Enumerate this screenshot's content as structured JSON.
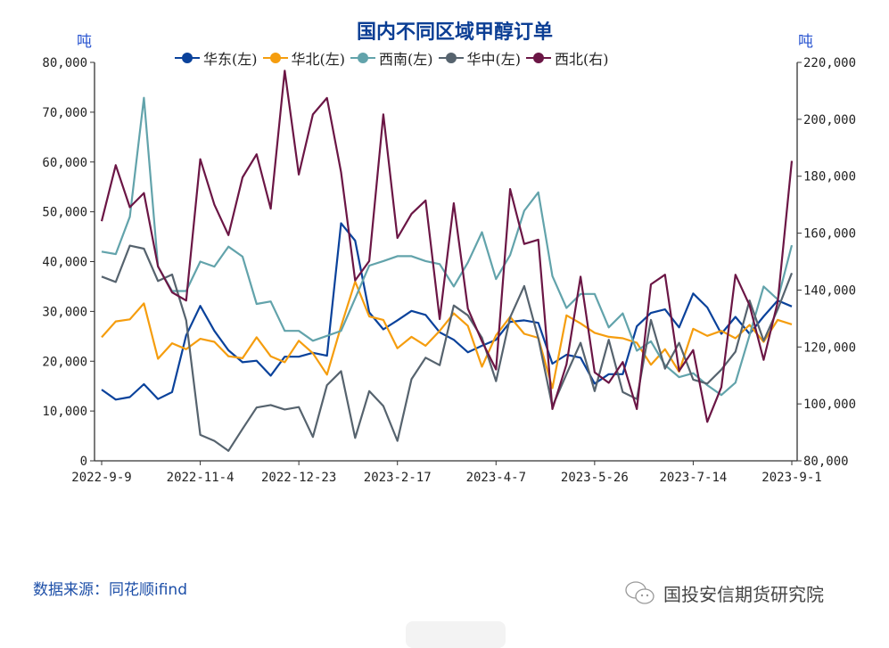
{
  "chart_data": {
    "type": "line",
    "title": "国内不同区域甲醇订单",
    "ylabel_left": "吨",
    "ylabel_right": "吨",
    "ylim_left": [
      0,
      80000
    ],
    "ylim_right": [
      80000,
      220000
    ],
    "yticks_left": [
      "0",
      "10,000",
      "20,000",
      "30,000",
      "40,000",
      "50,000",
      "60,000",
      "70,000",
      "80,000"
    ],
    "yticks_right": [
      "80,000",
      "100,000",
      "120,000",
      "140,000",
      "160,000",
      "180,000",
      "200,000",
      "220,000"
    ],
    "xticks": [
      {
        "index": 0,
        "label": "2022-9-9"
      },
      {
        "index": 7,
        "label": "2022-11-4"
      },
      {
        "index": 14,
        "label": "2022-12-23"
      },
      {
        "index": 21,
        "label": "2023-2-17"
      },
      {
        "index": 28,
        "label": "2023-4-7"
      },
      {
        "index": 35,
        "label": "2023-5-26"
      },
      {
        "index": 42,
        "label": "2023-7-14"
      },
      {
        "index": 49,
        "label": "2023-9-1"
      }
    ],
    "grid": false,
    "legend_position": "top",
    "series": [
      {
        "name": "华东(左)",
        "axis": "left",
        "color": "#0a429b",
        "values": [
          14300,
          12300,
          12800,
          15400,
          12400,
          13800,
          25200,
          31100,
          26100,
          22200,
          19800,
          20100,
          17100,
          20900,
          20900,
          21700,
          21100,
          47700,
          44200,
          29800,
          26400,
          28200,
          30100,
          29300,
          25800,
          24300,
          21800,
          23100,
          24300,
          27900,
          28200,
          27700,
          19500,
          21300,
          20700,
          15500,
          17400,
          17400,
          27000,
          29700,
          30400,
          26800,
          33600,
          30800,
          25500,
          28900,
          25500,
          29000,
          32200,
          31000
        ]
      },
      {
        "name": "华北(左)",
        "axis": "left",
        "color": "#f59d0e",
        "values": [
          24800,
          28000,
          28400,
          31600,
          20500,
          23600,
          22400,
          24500,
          23900,
          21000,
          20600,
          24800,
          21000,
          19800,
          24100,
          21600,
          17300,
          27000,
          36000,
          29000,
          28300,
          22600,
          24900,
          23100,
          26100,
          29600,
          27100,
          18900,
          25200,
          28900,
          25500,
          24700,
          14600,
          29200,
          27600,
          25700,
          24900,
          24600,
          23700,
          19300,
          22400,
          17900,
          26500,
          25100,
          26100,
          24600,
          27300,
          23900,
          28300,
          27400
        ]
      },
      {
        "name": "西南(左)",
        "axis": "left",
        "color": "#62a3ab",
        "values": [
          42000,
          41500,
          49000,
          72900,
          39000,
          34100,
          34100,
          40000,
          39000,
          43000,
          41000,
          31500,
          32000,
          26100,
          26100,
          24100,
          25100,
          26100,
          32600,
          39200,
          40100,
          41100,
          41100,
          40100,
          39500,
          35000,
          39800,
          45900,
          36500,
          41300,
          50200,
          53900,
          37100,
          30700,
          33500,
          33500,
          26800,
          29600,
          22100,
          24000,
          19200,
          16800,
          17600,
          15200,
          13200,
          15700,
          25200,
          35000,
          32400,
          43300
        ]
      },
      {
        "name": "华中(左)",
        "axis": "left",
        "color": "#56636e",
        "values": [
          37000,
          35900,
          43200,
          42600,
          36100,
          37400,
          28200,
          5200,
          4000,
          2000,
          6400,
          10700,
          11200,
          10300,
          10800,
          4800,
          15200,
          18000,
          4600,
          14000,
          11000,
          4000,
          16400,
          20700,
          19200,
          31200,
          29200,
          24700,
          16000,
          28800,
          35100,
          24600,
          10900,
          17400,
          23700,
          14000,
          24300,
          13800,
          12400,
          28300,
          18500,
          23700,
          16300,
          15500,
          18300,
          21900,
          32200,
          24100,
          30400,
          37700
        ]
      },
      {
        "name": "西北(右)",
        "axis": "right",
        "color": "#6b1645",
        "values": [
          164200,
          183900,
          169100,
          174100,
          148300,
          139200,
          136300,
          186000,
          170000,
          159300,
          179600,
          187700,
          168600,
          217100,
          180600,
          201700,
          207500,
          181400,
          143400,
          150200,
          201700,
          158300,
          166800,
          171500,
          129800,
          170500,
          133500,
          122000,
          112100,
          175500,
          156200,
          157700,
          98200,
          113900,
          144700,
          111100,
          107400,
          114700,
          98200,
          142000,
          145400,
          111600,
          118900,
          93700,
          105900,
          145400,
          134700,
          115500,
          135800,
          185400
        ]
      }
    ]
  },
  "source": "数据来源：同花顺ifind",
  "brand": "国投安信期货研究院"
}
